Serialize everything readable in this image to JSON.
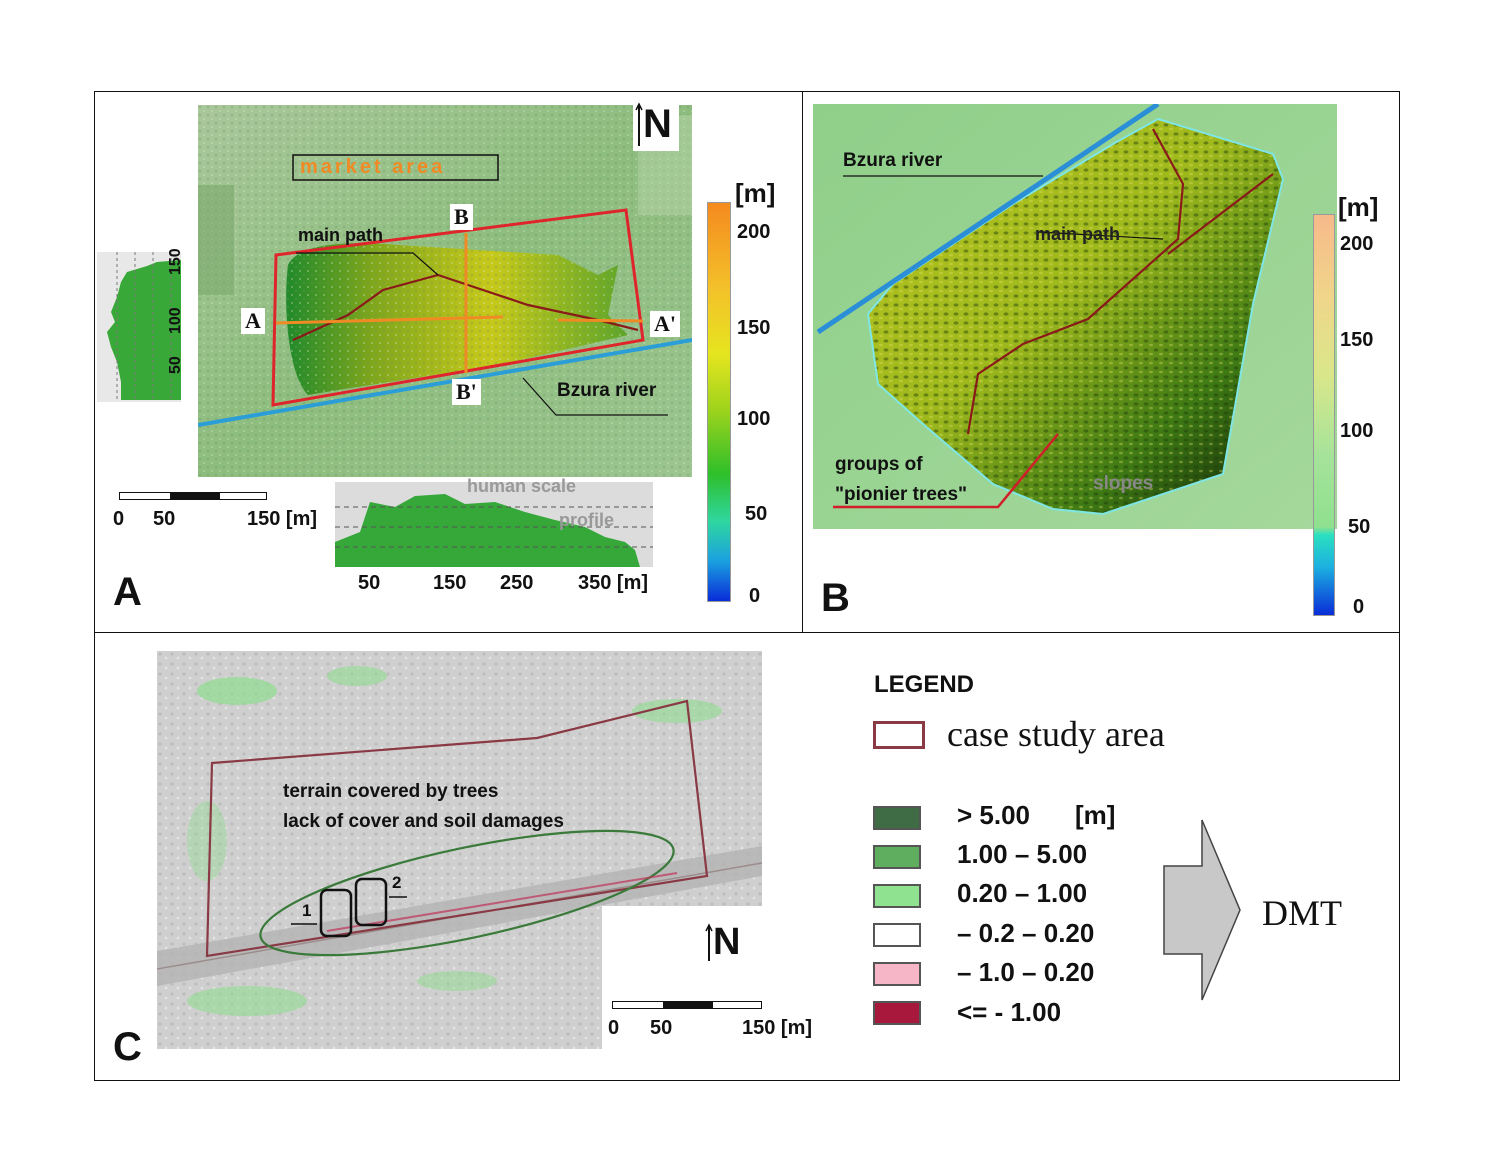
{
  "panel_a": {
    "letter": "A",
    "north": "N",
    "market_area": "market   area",
    "main_path": "main path",
    "section_a": "A",
    "section_a_prime": "A'",
    "section_b": "B",
    "section_b_prime": "B'",
    "river": "Bzura river",
    "vertical_profile_ticks": [
      "150",
      "100",
      "50"
    ],
    "profile_title": "human scale",
    "profile_sub": "profile",
    "profile_ticks": [
      "50",
      "150",
      "250",
      "350 [m]"
    ],
    "scalebar_ticks": [
      "0",
      "50",
      "150 [m]"
    ],
    "colorbar_unit": "[m]",
    "colorbar_ticks": [
      "200",
      "150",
      "100",
      "50",
      "0"
    ]
  },
  "panel_b": {
    "letter": "B",
    "river": "Bzura river",
    "main_path": "main path",
    "trees_line1": "groups of",
    "trees_line2": "\"pionier trees\"",
    "slopes": "slopes",
    "colorbar_unit": "[m]",
    "colorbar_ticks": [
      "200",
      "150",
      "100",
      "50",
      "0"
    ]
  },
  "panel_c": {
    "letter": "C",
    "text_line1": "terrain covered by trees",
    "text_line2": "lack of cover and soil damages",
    "marker_1": "1",
    "marker_2": "2",
    "north": "N",
    "scalebar_ticks": [
      "0",
      "50",
      "150 [m]"
    ]
  },
  "legend": {
    "title": "LEGEND",
    "case_study": "case study area",
    "items": [
      {
        "label": "> 5.00",
        "unit": "[m]",
        "color": "#3f6b45"
      },
      {
        "label": "1.00  – 5.00",
        "unit": "",
        "color": "#5fad5f"
      },
      {
        "label": "0.20  – 1.00",
        "unit": "",
        "color": "#8fe28f"
      },
      {
        "label": "– 0.2  – 0.20",
        "unit": "",
        "color": "#ffffff"
      },
      {
        "label": "– 1.0  – 0.20",
        "unit": "",
        "color": "#f7b5c8"
      },
      {
        "label": "<= - 1.00",
        "unit": "",
        "color": "#a8183c"
      }
    ],
    "arrow_label": "DMT"
  }
}
